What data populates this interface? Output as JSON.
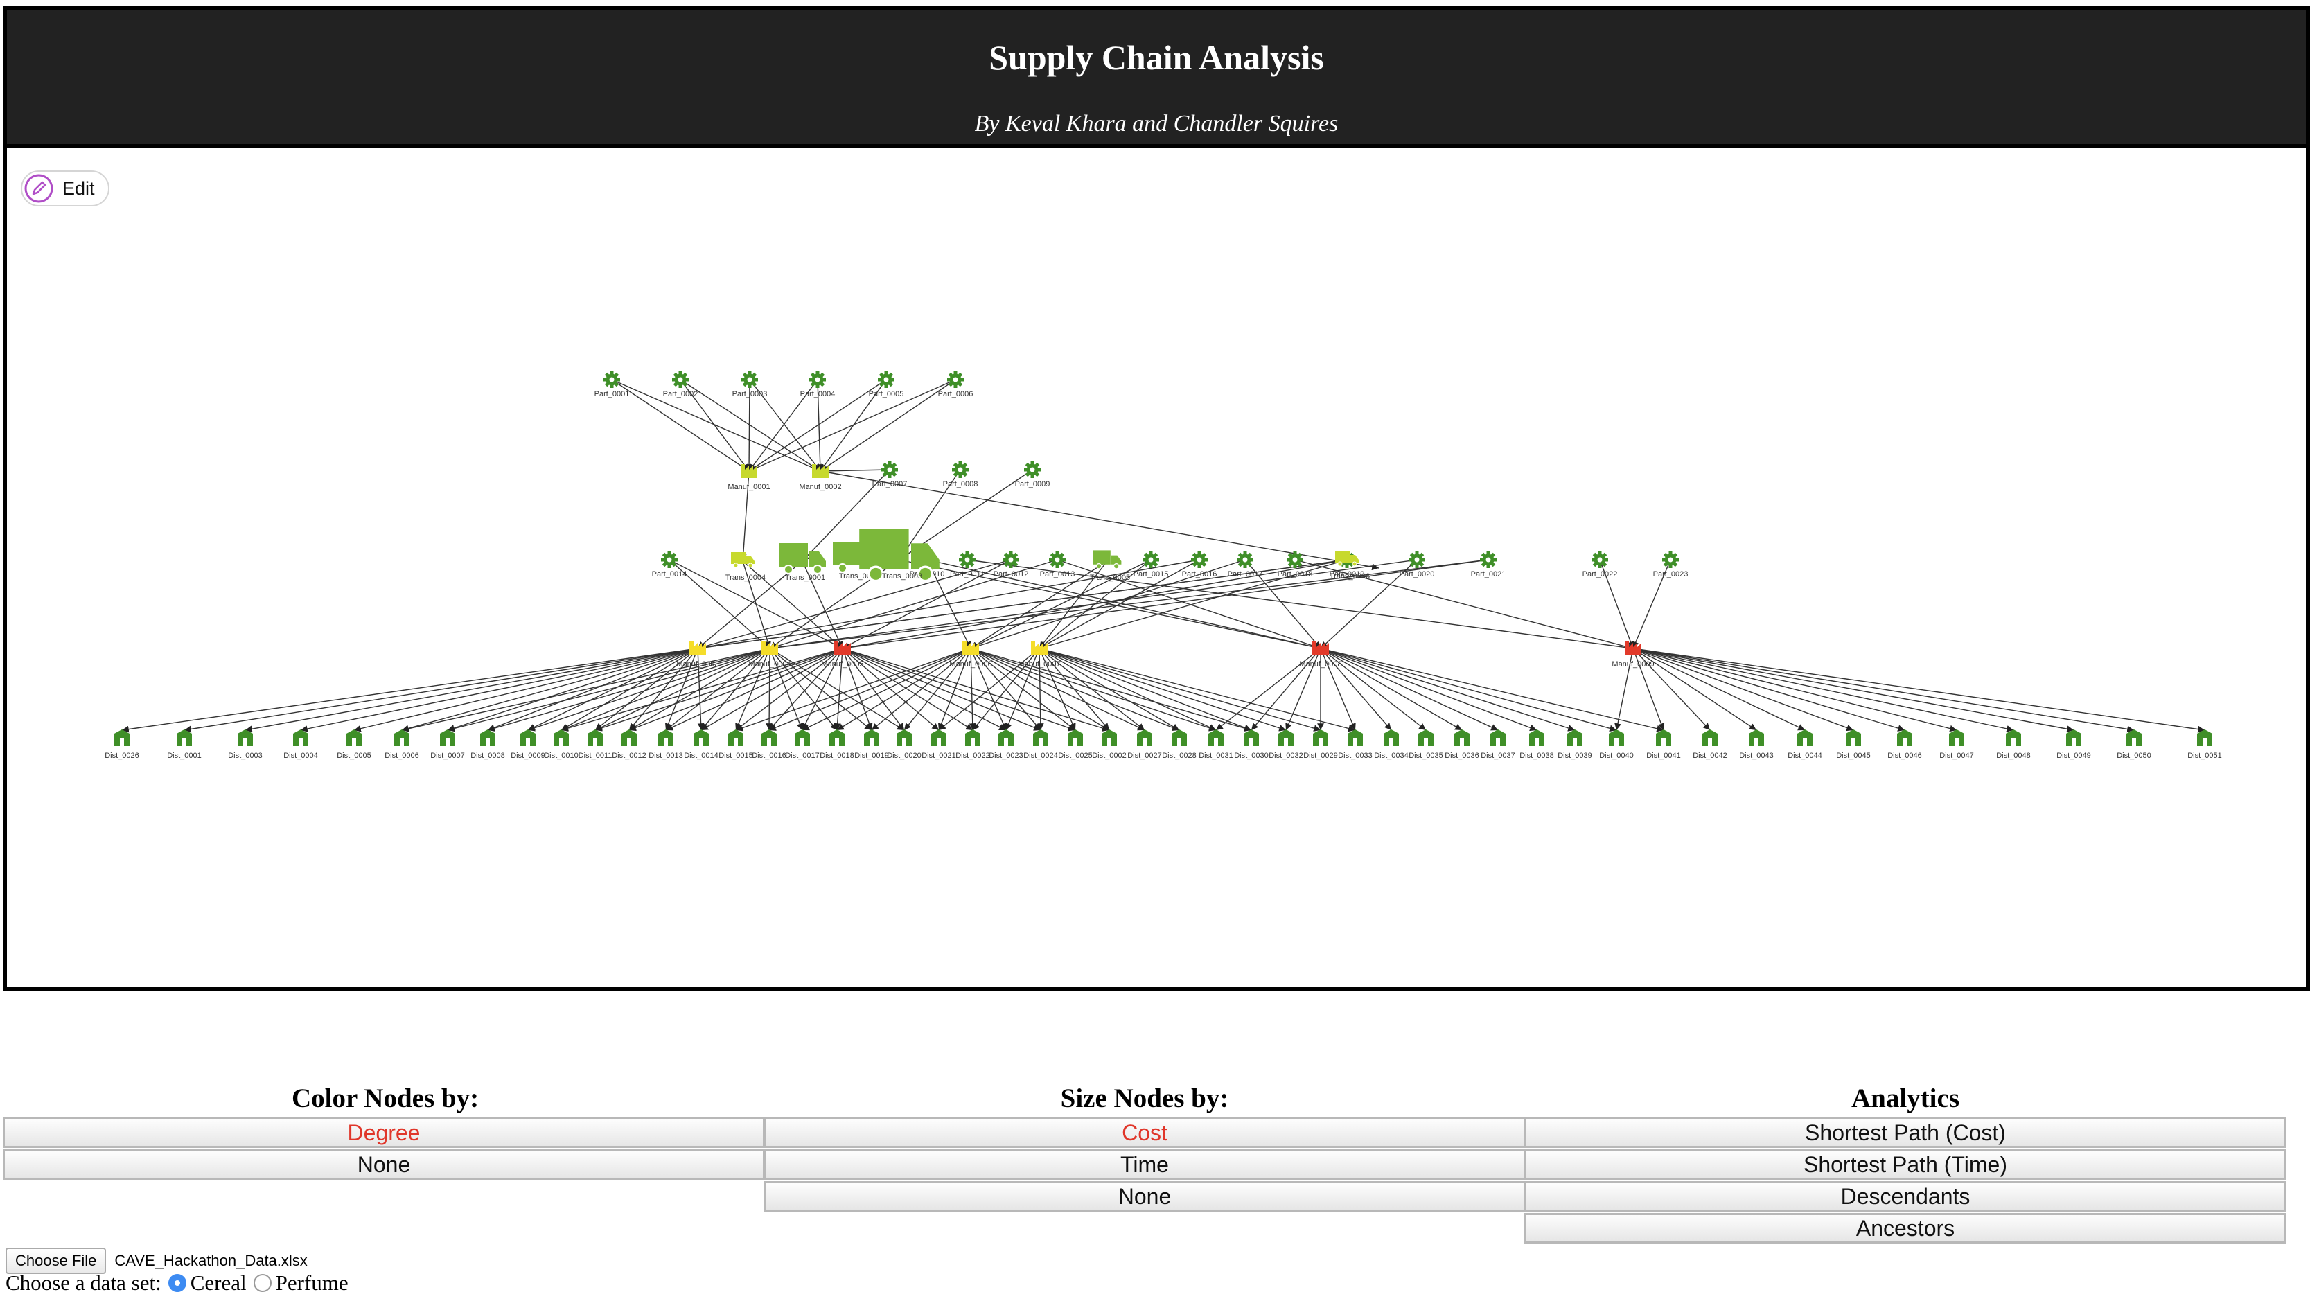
{
  "header": {
    "title": "Supply Chain Analysis",
    "subtitle": "By Keval Khara and Chandler Squires"
  },
  "toolbar": {
    "edit_label": "Edit"
  },
  "colors": {
    "part": "#3f8f28",
    "dist": "#3f8f28",
    "trans": "#7cb83a",
    "manuf_yellow": "#f5dd2a",
    "manuf_lime": "#c7d92e",
    "manuf_red": "#e23a2a",
    "edge": "#333333",
    "active_text": "#e0362a"
  },
  "graph": {
    "parts": [
      "Part_0001",
      "Part_0002",
      "Part_0003",
      "Part_0004",
      "Part_0005",
      "Part_0006",
      "Part_0007",
      "Part_0008",
      "Part_0009",
      "Part_0010",
      "Part_0011",
      "Part_0012",
      "Part_0013",
      "Part_0014",
      "Part_0015",
      "Part_0016",
      "Part_0017",
      "Part_0018",
      "Part_0019",
      "Part_0020",
      "Part_0021",
      "Part_0022",
      "Part_0023"
    ],
    "manufacturers": [
      {
        "label": "Manuf_0001",
        "color": "lime"
      },
      {
        "label": "Manuf_0002",
        "color": "lime"
      },
      {
        "label": "Manuf_0003",
        "color": "yellow"
      },
      {
        "label": "Manuf_0004",
        "color": "yellow"
      },
      {
        "label": "Manuf_0005",
        "color": "red"
      },
      {
        "label": "Manuf_0006",
        "color": "yellow"
      },
      {
        "label": "Manuf_0007",
        "color": "yellow"
      },
      {
        "label": "Manuf_0008",
        "color": "red"
      },
      {
        "label": "Manuf_0009",
        "color": "red"
      }
    ],
    "transports": [
      "Trans_0001",
      "Trans_0002",
      "Trans_0003",
      "Trans_0004",
      "Trans_0005",
      "Trans_0006"
    ],
    "distributors": [
      "Dist_0026",
      "Dist_0001",
      "Dist_0003",
      "Dist_0004",
      "Dist_0005",
      "Dist_0006",
      "Dist_0007",
      "Dist_0008",
      "Dist_0009",
      "Dist_0010",
      "Dist_0011",
      "Dist_0012",
      "Dist_0013",
      "Dist_0014",
      "Dist_0015",
      "Dist_0016",
      "Dist_0017",
      "Dist_0018",
      "Dist_0019",
      "Dist_0020",
      "Dist_0021",
      "Dist_0022",
      "Dist_0023",
      "Dist_0024",
      "Dist_0025",
      "Dist_0002",
      "Dist_0027",
      "Dist_0028",
      "Dist_0031",
      "Dist_0030",
      "Dist_0032",
      "Dist_0029",
      "Dist_0033",
      "Dist_0034",
      "Dist_0035",
      "Dist_0036",
      "Dist_0037",
      "Dist_0038",
      "Dist_0039",
      "Dist_0040",
      "Dist_0041",
      "Dist_0042",
      "Dist_0043",
      "Dist_0044",
      "Dist_0045",
      "Dist_0046",
      "Dist_0047",
      "Dist_0048",
      "Dist_0049",
      "Dist_0050",
      "Dist_0051"
    ]
  },
  "controls": {
    "color": {
      "title": "Color Nodes by:",
      "options": [
        {
          "label": "Degree",
          "active": true
        },
        {
          "label": "None",
          "active": false
        }
      ]
    },
    "size": {
      "title": "Size Nodes by:",
      "options": [
        {
          "label": "Cost",
          "active": true
        },
        {
          "label": "Time",
          "active": false
        },
        {
          "label": "None",
          "active": false
        }
      ]
    },
    "analytics": {
      "title": "Analytics",
      "options": [
        {
          "label": "Shortest Path (Cost)"
        },
        {
          "label": "Shortest Path (Time)"
        },
        {
          "label": "Descendants"
        },
        {
          "label": "Ancestors"
        }
      ]
    }
  },
  "file": {
    "button_label": "Choose File",
    "filename": "CAVE_Hackathon_Data.xlsx"
  },
  "dataset": {
    "prompt": "Choose a data set:",
    "options": [
      {
        "label": "Cereal",
        "checked": true
      },
      {
        "label": "Perfume",
        "checked": false
      }
    ]
  }
}
